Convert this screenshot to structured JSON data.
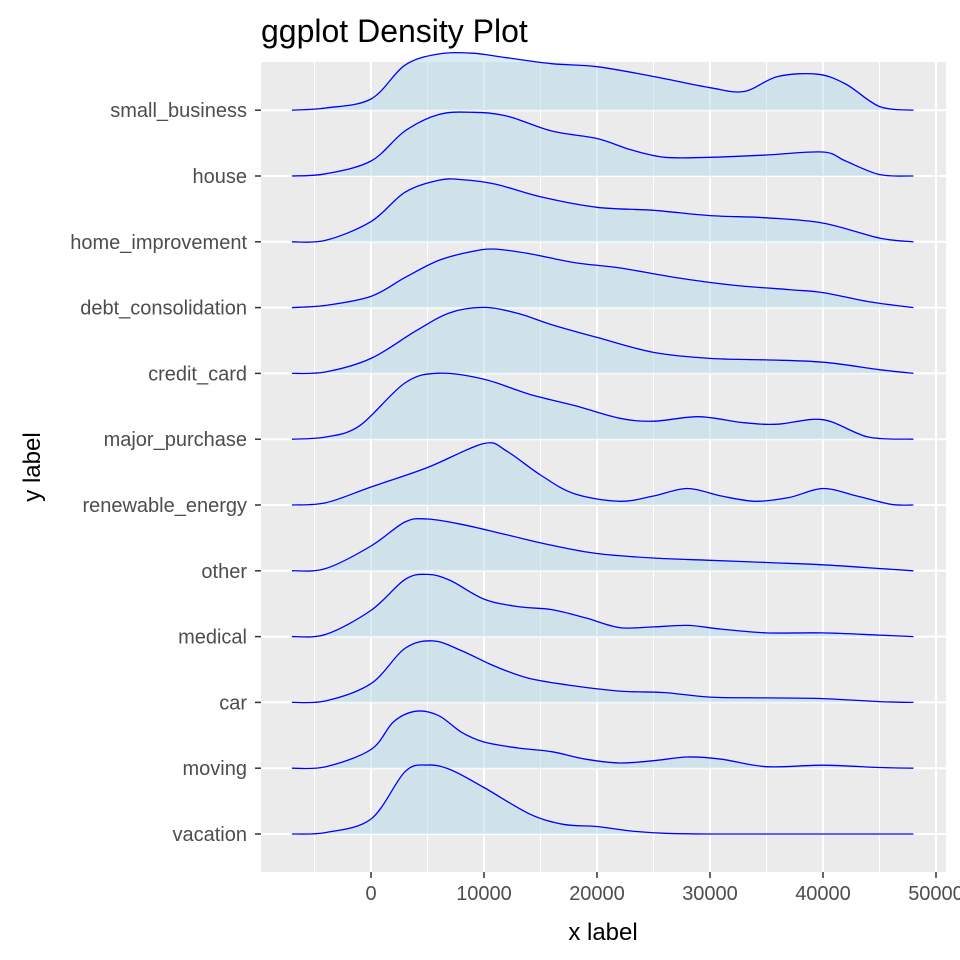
{
  "chart_data": {
    "type": "ridgeline-density",
    "title": "ggplot Density Plot",
    "xlabel": "x label",
    "ylabel": "y label",
    "xlim": [
      -10000,
      50000
    ],
    "x_ticks": [
      0,
      10000,
      20000,
      30000,
      40000,
      50000
    ],
    "x_tick_labels": [
      "0",
      "10000",
      "20000",
      "30000",
      "40000",
      "50000"
    ],
    "x_range_drawn": [
      -7000,
      48000
    ],
    "grid": true,
    "panel_background": "#ebebeb",
    "grid_color": "#ffffff",
    "fill_color": "#add8e6",
    "line_color": "#0000ff",
    "categories": [
      "vacation",
      "moving",
      "car",
      "medical",
      "other",
      "renewable_energy",
      "major_purchase",
      "credit_card",
      "debt_consolidation",
      "home_improvement",
      "house",
      "small_business"
    ],
    "series": [
      {
        "category": "vacation",
        "x": [
          -7000,
          -4000,
          0,
          3000,
          5000,
          7000,
          10000,
          14000,
          17000,
          20000,
          23000,
          26000,
          30000,
          35000,
          40000,
          48000
        ],
        "height": [
          0,
          0.02,
          0.2,
          0.83,
          0.92,
          0.86,
          0.62,
          0.27,
          0.13,
          0.1,
          0.04,
          0.01,
          0,
          0,
          0,
          0
        ]
      },
      {
        "category": "moving",
        "x": [
          -7000,
          -4000,
          0,
          2000,
          4000,
          6000,
          8000,
          10000,
          13000,
          16000,
          19000,
          22000,
          25000,
          28000,
          31000,
          35000,
          40000,
          45000,
          48000
        ],
        "height": [
          0,
          0.02,
          0.25,
          0.62,
          0.76,
          0.7,
          0.48,
          0.35,
          0.27,
          0.22,
          0.12,
          0.07,
          0.1,
          0.15,
          0.12,
          0.02,
          0.04,
          0.01,
          0
        ]
      },
      {
        "category": "car",
        "x": [
          -7000,
          -4000,
          0,
          3000,
          5500,
          8000,
          11000,
          14000,
          18000,
          22000,
          26000,
          30000,
          35000,
          40000,
          45000,
          48000
        ],
        "height": [
          0,
          0.02,
          0.25,
          0.72,
          0.82,
          0.69,
          0.48,
          0.32,
          0.22,
          0.15,
          0.13,
          0.07,
          0.06,
          0.05,
          0.01,
          0
        ]
      },
      {
        "category": "medical",
        "x": [
          -7000,
          -4000,
          0,
          3000,
          5000,
          7000,
          10000,
          13000,
          16000,
          19000,
          22000,
          25000,
          28000,
          31000,
          35000,
          40000,
          45000,
          48000
        ],
        "height": [
          0,
          0.03,
          0.35,
          0.76,
          0.83,
          0.75,
          0.5,
          0.4,
          0.36,
          0.25,
          0.12,
          0.13,
          0.15,
          0.1,
          0.05,
          0.05,
          0.02,
          0
        ]
      },
      {
        "category": "other",
        "x": [
          -7000,
          -4000,
          0,
          3000,
          5000,
          8000,
          12000,
          16000,
          20000,
          25000,
          30000,
          35000,
          40000,
          45000,
          48000
        ],
        "height": [
          0,
          0.03,
          0.33,
          0.65,
          0.69,
          0.62,
          0.48,
          0.34,
          0.23,
          0.17,
          0.14,
          0.11,
          0.08,
          0.03,
          0
        ]
      },
      {
        "category": "renewable_energy",
        "x": [
          -7000,
          -4000,
          0,
          5000,
          10000,
          12000,
          15000,
          18000,
          22000,
          25000,
          28000,
          31000,
          34000,
          37000,
          40000,
          43000,
          46000,
          48000
        ],
        "height": [
          0,
          0.03,
          0.24,
          0.5,
          0.82,
          0.72,
          0.4,
          0.15,
          0.05,
          0.12,
          0.22,
          0.12,
          0.05,
          0.1,
          0.22,
          0.12,
          0.01,
          0
        ]
      },
      {
        "category": "major_purchase",
        "x": [
          -7000,
          -4000,
          -1000,
          3000,
          6000,
          10000,
          14000,
          18000,
          22000,
          25000,
          29000,
          33000,
          36000,
          40000,
          44000,
          48000
        ],
        "height": [
          0,
          0.03,
          0.18,
          0.75,
          0.88,
          0.8,
          0.6,
          0.45,
          0.28,
          0.24,
          0.3,
          0.22,
          0.2,
          0.26,
          0.03,
          0
        ]
      },
      {
        "category": "credit_card",
        "x": [
          -7000,
          -4000,
          0,
          4000,
          7000,
          10000,
          13000,
          16000,
          20000,
          25000,
          30000,
          35000,
          40000,
          45000,
          48000
        ],
        "height": [
          0,
          0.02,
          0.2,
          0.57,
          0.81,
          0.88,
          0.8,
          0.65,
          0.48,
          0.28,
          0.2,
          0.18,
          0.15,
          0.05,
          0
        ]
      },
      {
        "category": "debt_consolidation",
        "x": [
          -7000,
          -4000,
          0,
          3000,
          6000,
          9000,
          11000,
          14000,
          18000,
          22000,
          27000,
          32000,
          37000,
          40000,
          44000,
          48000
        ],
        "height": [
          0,
          0.03,
          0.15,
          0.4,
          0.63,
          0.75,
          0.78,
          0.72,
          0.6,
          0.53,
          0.4,
          0.3,
          0.24,
          0.2,
          0.08,
          0
        ]
      },
      {
        "category": "home_improvement",
        "x": [
          -7000,
          -4000,
          0,
          3000,
          6000,
          8000,
          11000,
          15000,
          20000,
          25000,
          30000,
          35000,
          40000,
          45000,
          48000
        ],
        "height": [
          0,
          0.02,
          0.27,
          0.66,
          0.82,
          0.83,
          0.77,
          0.6,
          0.46,
          0.42,
          0.35,
          0.32,
          0.25,
          0.05,
          0
        ]
      },
      {
        "category": "house",
        "x": [
          -7000,
          -4000,
          0,
          3000,
          6000,
          9000,
          12000,
          16000,
          20000,
          23000,
          26000,
          30000,
          35000,
          40000,
          42000,
          45000,
          48000
        ],
        "height": [
          0,
          0.03,
          0.2,
          0.6,
          0.82,
          0.85,
          0.8,
          0.6,
          0.5,
          0.35,
          0.25,
          0.25,
          0.28,
          0.32,
          0.2,
          0.02,
          0
        ]
      },
      {
        "category": "small_business",
        "x": [
          -7000,
          -4000,
          0,
          3000,
          6000,
          9000,
          12000,
          16000,
          20000,
          25000,
          30000,
          33000,
          36000,
          39500,
          42000,
          45000,
          48000
        ],
        "height": [
          0,
          0.03,
          0.15,
          0.6,
          0.75,
          0.76,
          0.7,
          0.62,
          0.58,
          0.45,
          0.3,
          0.25,
          0.45,
          0.48,
          0.35,
          0.05,
          0
        ]
      }
    ]
  }
}
